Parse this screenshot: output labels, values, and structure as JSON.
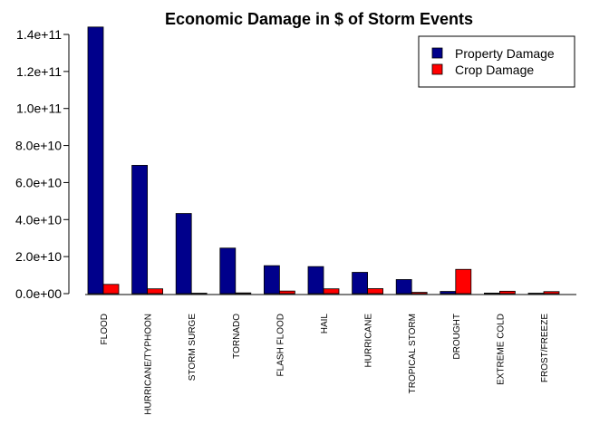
{
  "chart_data": {
    "type": "bar",
    "title": "Economic Damage in $ of Storm Events",
    "xlabel": "",
    "ylabel": "",
    "categories": [
      "FLOOD",
      "HURRICANE/TYPHOON",
      "STORM SURGE",
      "TORNADO",
      "FLASH FLOOD",
      "HAIL",
      "HURRICANE",
      "TROPICAL STORM",
      "DROUGHT",
      "EXTREME COLD",
      "FROST/FREEZE"
    ],
    "series": [
      {
        "name": "Property Damage",
        "color": "#00008B",
        "values": [
          144000000000,
          69300000000,
          43300000000,
          24600000000,
          15100000000,
          14600000000,
          11500000000,
          7600000000,
          1200000000,
          300000000,
          200000000
        ]
      },
      {
        "name": "Crop Damage",
        "color": "#FF0000",
        "values": [
          5000000000,
          2600000000,
          5000000,
          400000000,
          1400000000,
          2600000000,
          2700000000,
          700000000,
          13100000000,
          1300000000,
          1100000000
        ]
      }
    ],
    "ylim": [
      0,
      140000000000
    ],
    "yticks": [
      0,
      20000000000,
      40000000000,
      60000000000,
      80000000000,
      100000000000,
      120000000000,
      140000000000
    ],
    "ytick_labels": [
      "0.0e+00",
      "2.0e+10",
      "4.0e+10",
      "6.0e+10",
      "8.0e+10",
      "1.0e+11",
      "1.2e+11",
      "1.4e+11"
    ],
    "legend_position": "top-right",
    "grid": false,
    "bar_outline_color": "#000000"
  }
}
